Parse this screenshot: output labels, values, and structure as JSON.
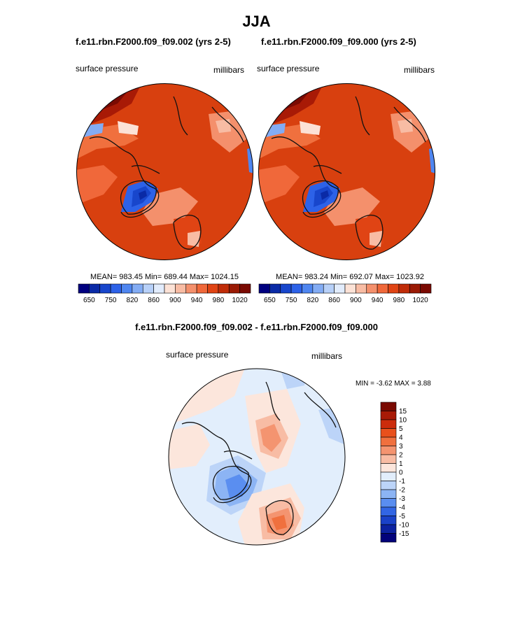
{
  "page": {
    "title": "JJA"
  },
  "panels": [
    {
      "case_title": "f.e11.rbn.F2000.f09_f09.002 (yrs 2-5)",
      "left_label": "surface pressure",
      "right_label": "millibars",
      "stats": "MEAN= 983.45  Min= 689.44  Max= 1024.15"
    },
    {
      "case_title": "f.e11.rbn.F2000.f09_f09.000 (yrs 2-5)",
      "left_label": "surface pressure",
      "right_label": "millibars",
      "stats": "MEAN= 983.24  Min= 692.07  Max= 1023.92"
    }
  ],
  "diff_panel": {
    "case_title": "f.e11.rbn.F2000.f09_f09.002 - f.e11.rbn.F2000.f09_f09.000",
    "left_label": "surface pressure",
    "right_label": "millibars",
    "minmax": "MIN =  -3.62 MAX =   3.88"
  },
  "chart_data": [
    {
      "type": "heatmap",
      "projection": "north-polar-stereographic",
      "variable": "surface pressure",
      "units": "millibars",
      "mean": 983.45,
      "min": 689.44,
      "max": 1024.15,
      "colorbar": {
        "orientation": "horizontal",
        "levels": [
          650,
          700,
          750,
          800,
          820,
          840,
          860,
          880,
          900,
          920,
          940,
          960,
          980,
          1000,
          1020
        ],
        "tick_labels": [
          "650",
          "750",
          "820",
          "860",
          "900",
          "940",
          "980",
          "1020"
        ],
        "colors": [
          "#00007f",
          "#0a2aa6",
          "#1846cc",
          "#2d62e8",
          "#4f86f0",
          "#83acf4",
          "#b7d0f8",
          "#e2ecfc",
          "#fce2d6",
          "#f8bca4",
          "#f4906c",
          "#f0683a",
          "#e04414",
          "#c02c08",
          "#9a1a04",
          "#7a0a02"
        ]
      }
    },
    {
      "type": "heatmap",
      "projection": "north-polar-stereographic",
      "variable": "surface pressure",
      "units": "millibars",
      "mean": 983.24,
      "min": 692.07,
      "max": 1023.92,
      "colorbar": {
        "orientation": "horizontal",
        "levels": [
          650,
          700,
          750,
          800,
          820,
          840,
          860,
          880,
          900,
          920,
          940,
          960,
          980,
          1000,
          1020
        ],
        "tick_labels": [
          "650",
          "750",
          "820",
          "860",
          "900",
          "940",
          "980",
          "1020"
        ],
        "colors": [
          "#00007f",
          "#0a2aa6",
          "#1846cc",
          "#2d62e8",
          "#4f86f0",
          "#83acf4",
          "#b7d0f8",
          "#e2ecfc",
          "#fce2d6",
          "#f8bca4",
          "#f4906c",
          "#f0683a",
          "#e04414",
          "#c02c08",
          "#9a1a04",
          "#7a0a02"
        ]
      }
    },
    {
      "type": "heatmap",
      "projection": "north-polar-stereographic",
      "variable": "surface pressure",
      "units": "millibars",
      "min": -3.62,
      "max": 3.88,
      "colorbar": {
        "orientation": "vertical",
        "tick_labels": [
          "15",
          "10",
          "5",
          "4",
          "3",
          "2",
          "1",
          "0",
          "-1",
          "-2",
          "-3",
          "-4",
          "-5",
          "-10",
          "-15"
        ],
        "colors": [
          "#7a0a02",
          "#a81a06",
          "#cc2c0c",
          "#e8501c",
          "#f0703e",
          "#f49470",
          "#f8bca4",
          "#fce6dc",
          "#e2eefc",
          "#bcd4f8",
          "#8cb4f4",
          "#5a8ef0",
          "#3266e4",
          "#1a42c8",
          "#0c22a0",
          "#02027a"
        ]
      }
    }
  ]
}
